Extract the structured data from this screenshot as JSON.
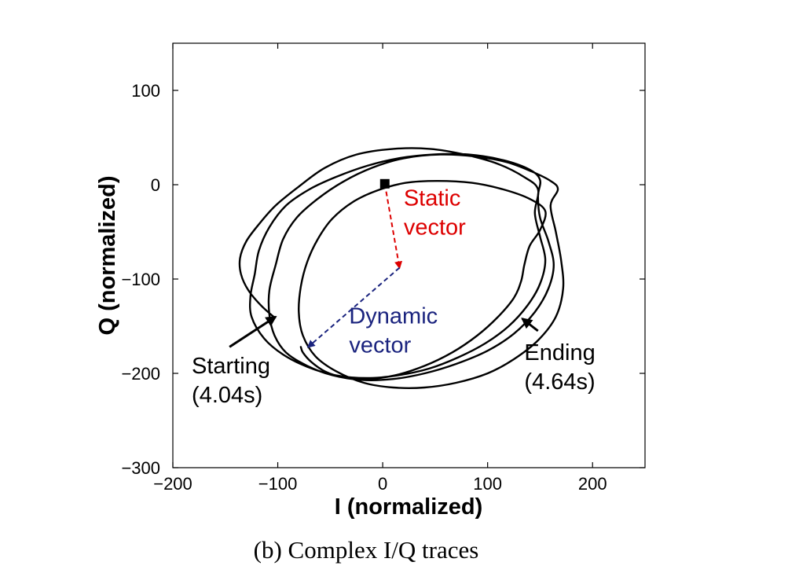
{
  "chart_data": {
    "type": "line",
    "caption": "(b) Complex I/Q traces",
    "xlabel": "I (normalized)",
    "ylabel": "Q (normalized)",
    "xlim": [
      -200,
      250
    ],
    "ylim": [
      -300,
      150
    ],
    "xticks": [
      -200,
      -100,
      0,
      100,
      200
    ],
    "yticks": [
      -300,
      -200,
      -100,
      0,
      100
    ],
    "xtick_labels": [
      "−200",
      "−100",
      "0",
      "100",
      "200"
    ],
    "ytick_labels": [
      "−300",
      "−200",
      "−100",
      "0",
      "100"
    ],
    "grid": false,
    "trace": {
      "color": "#000000",
      "x": [
        -104,
        -116,
        -128,
        -135,
        -136,
        -130,
        -118,
        -102,
        -80,
        -55,
        -25,
        10,
        45,
        78,
        110,
        135,
        148,
        145,
        150,
        155,
        150,
        138,
        120,
        98,
        72,
        44,
        15,
        -15,
        -45,
        -72,
        -95,
        -113,
        -125,
        -126,
        -122,
        -118,
        -108,
        -92,
        -70,
        -45,
        -15,
        15,
        48,
        82,
        115,
        140,
        150,
        148,
        150,
        158,
        163,
        158,
        145,
        125,
        100,
        70,
        40,
        10,
        -20,
        -48,
        -72,
        -92,
        -103,
        -108,
        -108,
        -102,
        -95,
        -82,
        -62,
        -38,
        -10,
        20,
        55,
        88,
        118,
        142,
        160,
        167,
        160,
        165,
        170,
        172,
        165,
        148,
        125,
        100,
        70,
        40,
        10,
        -18,
        -44,
        -64,
        -76,
        -80,
        -78,
        -72,
        -62,
        -48,
        -28,
        -5,
        22,
        52,
        85,
        115,
        140,
        155,
        150,
        140,
        135,
        132,
        125,
        110,
        90,
        66,
        40,
        12,
        -15,
        -38,
        -55,
        -68,
        -76,
        -78
      ],
      "y": [
        -140,
        -128,
        -112,
        -95,
        -78,
        -60,
        -42,
        -22,
        -2,
        18,
        32,
        38,
        38,
        32,
        22,
        8,
        -5,
        -30,
        -55,
        -80,
        -105,
        -128,
        -150,
        -168,
        -183,
        -195,
        -202,
        -205,
        -202,
        -193,
        -180,
        -163,
        -140,
        -118,
        -95,
        -70,
        -45,
        -22,
        -5,
        8,
        20,
        28,
        32,
        32,
        26,
        16,
        5,
        -12,
        -35,
        -60,
        -85,
        -110,
        -135,
        -158,
        -176,
        -190,
        -200,
        -206,
        -207,
        -202,
        -192,
        -178,
        -160,
        -138,
        -112,
        -85,
        -58,
        -35,
        -15,
        3,
        18,
        28,
        32,
        30,
        24,
        14,
        4,
        -5,
        -22,
        -50,
        -80,
        -110,
        -140,
        -165,
        -185,
        -200,
        -210,
        -215,
        -215,
        -210,
        -198,
        -182,
        -160,
        -135,
        -108,
        -82,
        -58,
        -36,
        -18,
        -6,
        2,
        4,
        2,
        -5,
        -15,
        -28,
        -48,
        -65,
        -85,
        -102,
        -120,
        -140,
        -160,
        -178,
        -192,
        -202,
        -206,
        -204,
        -198,
        -188,
        -178,
        -172
      ]
    },
    "markers": [
      {
        "name": "origin-marker",
        "type": "square",
        "color": "#000000",
        "x": 2,
        "y": 1
      }
    ],
    "vectors": [
      {
        "name": "static-vector-arrow",
        "color": "#dd0000",
        "style": "dashed",
        "from": [
          2,
          1
        ],
        "to": [
          16,
          -88
        ]
      },
      {
        "name": "dynamic-vector-arrow",
        "color": "#1a237e",
        "style": "dashed",
        "from": [
          16,
          -88
        ],
        "to": [
          -71,
          -172
        ]
      }
    ],
    "pointers": [
      {
        "name": "starting-arrow",
        "color": "#000000",
        "from": [
          -146,
          -172
        ],
        "to": [
          -102,
          -140
        ]
      },
      {
        "name": "ending-arrow",
        "color": "#000000",
        "from": [
          148,
          -155
        ],
        "to": [
          133,
          -142
        ]
      }
    ],
    "annotations": [
      {
        "name": "static-vector-label",
        "lines": [
          "Static",
          "vector"
        ],
        "color": "#dd0000",
        "x": 20,
        "y": -22
      },
      {
        "name": "dynamic-vector-label",
        "lines": [
          "Dynamic",
          "vector"
        ],
        "color": "#1a237e",
        "x": -32,
        "y": -147
      },
      {
        "name": "starting-label",
        "lines": [
          "Starting",
          "(4.04s)"
        ],
        "color": "#000000",
        "x": -182,
        "y": -200
      },
      {
        "name": "ending-label",
        "lines": [
          "Ending",
          "(4.64s)"
        ],
        "color": "#000000",
        "x": 135,
        "y": -186
      }
    ]
  }
}
